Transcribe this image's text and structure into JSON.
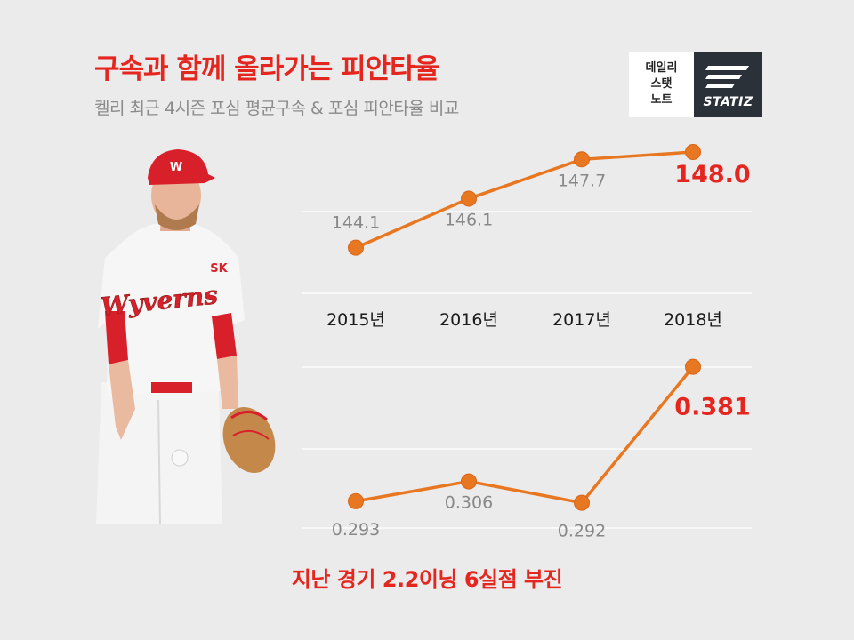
{
  "header": {
    "title": "구속과 함께 올라가는 피안타율",
    "subtitle": "켈리 최근 4시즌 포심 평균구속 & 포심 피안타율 비교"
  },
  "badge": {
    "left_lines": [
      "데일리",
      "스탯",
      "노트"
    ],
    "brand": "STATIZ"
  },
  "footer": "지난 경기 2.2이닝 6실점 부진",
  "player_jersey_text": "Wyverns",
  "player_chest_logo": "SK",
  "colors": {
    "accent_red": "#e5261f",
    "line_orange": "#e87722",
    "label_gray": "#888888",
    "background": "#ebebeb"
  },
  "chart_data": [
    {
      "type": "line",
      "categories": [
        "2015년",
        "2016년",
        "2017년",
        "2018년"
      ],
      "series": [
        {
          "values": [
            144.1,
            146.1,
            147.7,
            148.0
          ],
          "labels": [
            "144.1",
            "146.1",
            "147.7",
            "148.0"
          ]
        }
      ],
      "ylim": [
        142.6,
        148.4
      ],
      "grid": true
    },
    {
      "type": "line",
      "categories": [
        "2015년",
        "2016년",
        "2017년",
        "2018년"
      ],
      "series": [
        {
          "values": [
            0.293,
            0.306,
            0.292,
            0.381
          ],
          "labels": [
            "0.293",
            "0.306",
            "0.292",
            "0.381"
          ]
        }
      ],
      "ylim": [
        0.272,
        0.4
      ],
      "grid": true
    }
  ]
}
